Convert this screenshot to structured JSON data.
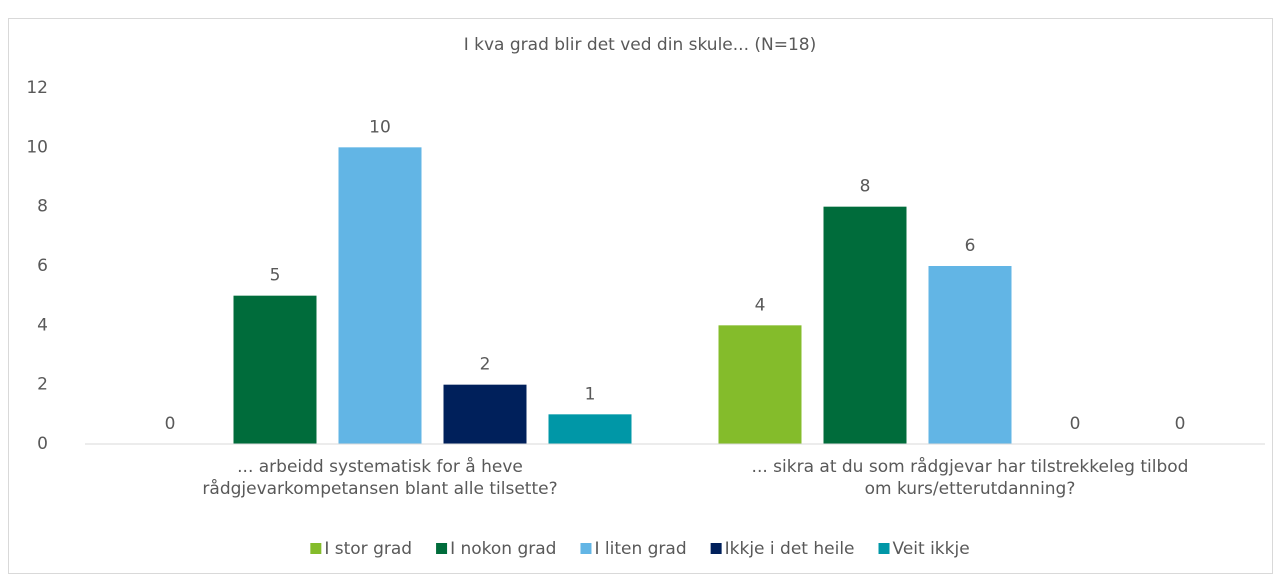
{
  "chart_data": {
    "type": "bar",
    "title": "I kva grad blir det ved din skule... (N=18)",
    "categories": [
      "... arbeidd systematisk for å heve rådgjevarkompetansen blant alle tilsette?",
      "... sikra at du som rådgjevar har tilstrekkeleg tilbod om kurs/etterutdanning?"
    ],
    "series": [
      {
        "name": "I stor grad",
        "color": "#84bc2b",
        "values": [
          0,
          4
        ]
      },
      {
        "name": "I nokon grad",
        "color": "#006c3b",
        "values": [
          5,
          8
        ]
      },
      {
        "name": "I liten grad",
        "color": "#62b5e5",
        "values": [
          10,
          6
        ]
      },
      {
        "name": "Ikkje i det heile",
        "color": "#00205b",
        "values": [
          2,
          0
        ]
      },
      {
        "name": "Veit ikkje",
        "color": "#0097a7",
        "values": [
          1,
          0
        ]
      }
    ],
    "ylim": [
      0,
      12
    ],
    "yticks": [
      0,
      2,
      4,
      6,
      8,
      10,
      12
    ],
    "grid": false,
    "legend": "bottom"
  }
}
